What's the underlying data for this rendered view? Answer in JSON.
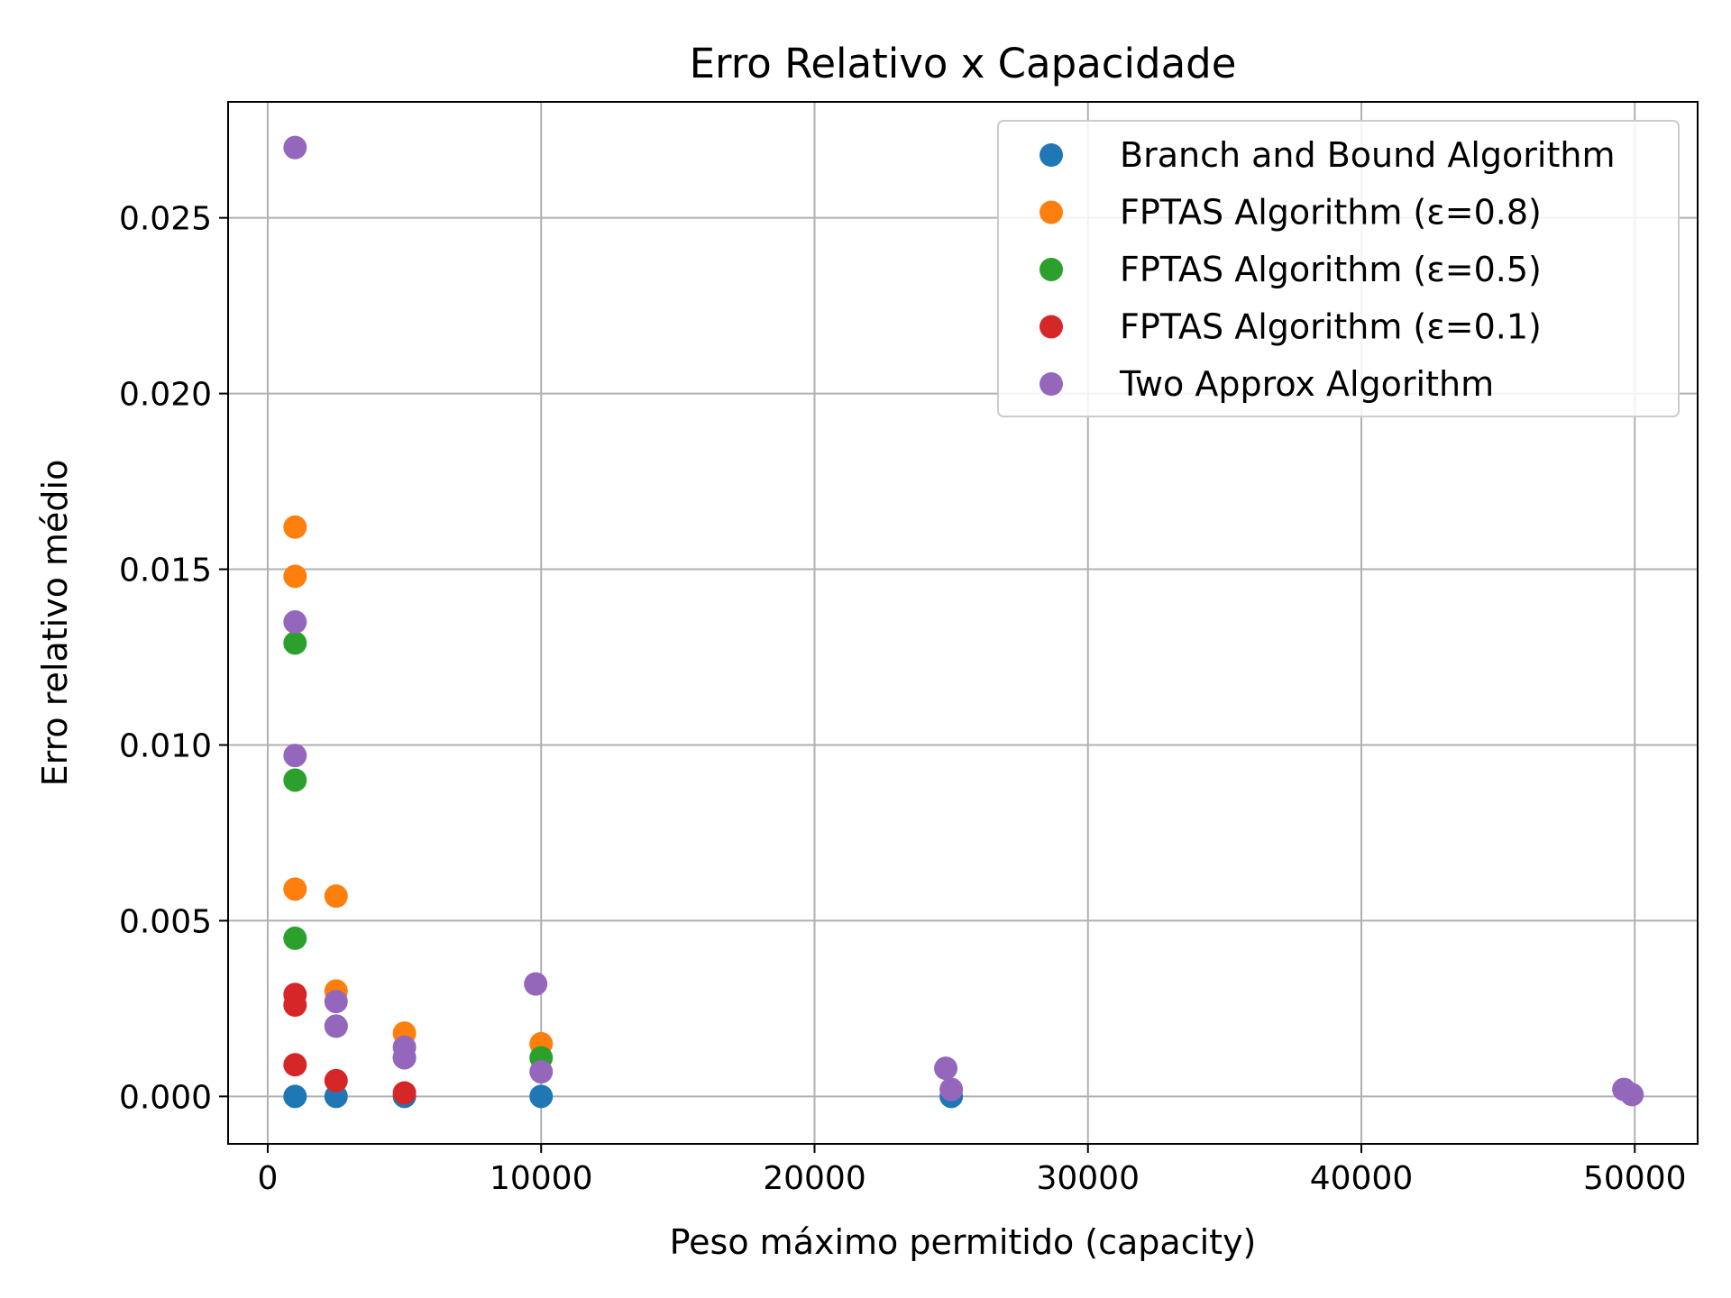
{
  "chart_data": {
    "type": "scatter",
    "title": "Erro Relativo x Capacidade",
    "xlabel": "Peso máximo permitido (capacity)",
    "ylabel": "Erro relativo médio",
    "xlim": [
      -1450,
      52300
    ],
    "ylim": [
      -0.00135,
      0.0283
    ],
    "xticks": [
      0,
      10000,
      20000,
      30000,
      40000,
      50000
    ],
    "xtick_labels": [
      "0",
      "10000",
      "20000",
      "30000",
      "40000",
      "50000"
    ],
    "yticks": [
      0.0,
      0.005,
      0.01,
      0.015,
      0.02,
      0.025
    ],
    "ytick_labels": [
      "0.000",
      "0.005",
      "0.010",
      "0.015",
      "0.020",
      "0.025"
    ],
    "grid": true,
    "legend_position": "top-right",
    "series": [
      {
        "name": "Branch and Bound Algorithm",
        "color": "#1f77b4",
        "points": [
          [
            1000,
            0.0
          ],
          [
            2500,
            0.0
          ],
          [
            5000,
            0.0
          ],
          [
            10000,
            0.0
          ],
          [
            25000,
            0.0
          ]
        ]
      },
      {
        "name": "FPTAS Algorithm (ε=0.8)",
        "color": "#ff7f0e",
        "points": [
          [
            1000,
            0.0162
          ],
          [
            1000,
            0.0148
          ],
          [
            1000,
            0.0059
          ],
          [
            2500,
            0.0057
          ],
          [
            2500,
            0.003
          ],
          [
            5000,
            0.0018
          ],
          [
            10000,
            0.0015
          ]
        ]
      },
      {
        "name": "FPTAS Algorithm (ε=0.5)",
        "color": "#2ca02c",
        "points": [
          [
            1000,
            0.0129
          ],
          [
            1000,
            0.009
          ],
          [
            1000,
            0.0045
          ],
          [
            2500,
            0.002
          ],
          [
            5000,
            0.0011
          ],
          [
            10000,
            0.0011
          ]
        ]
      },
      {
        "name": "FPTAS Algorithm (ε=0.1)",
        "color": "#d62728",
        "points": [
          [
            1000,
            0.0029
          ],
          [
            1000,
            0.0026
          ],
          [
            1000,
            0.0009
          ],
          [
            2500,
            0.00045
          ],
          [
            5000,
            0.0001
          ]
        ]
      },
      {
        "name": "Two Approx Algorithm",
        "color": "#9467bd",
        "points": [
          [
            1000,
            0.027
          ],
          [
            1000,
            0.0135
          ],
          [
            1000,
            0.0097
          ],
          [
            2500,
            0.0027
          ],
          [
            2500,
            0.002
          ],
          [
            5000,
            0.0014
          ],
          [
            5000,
            0.0011
          ],
          [
            9800,
            0.0032
          ],
          [
            10000,
            0.0007
          ],
          [
            24800,
            0.0008
          ],
          [
            25000,
            0.0002
          ],
          [
            49600,
            0.0002
          ],
          [
            49900,
            5e-05
          ]
        ]
      }
    ]
  }
}
